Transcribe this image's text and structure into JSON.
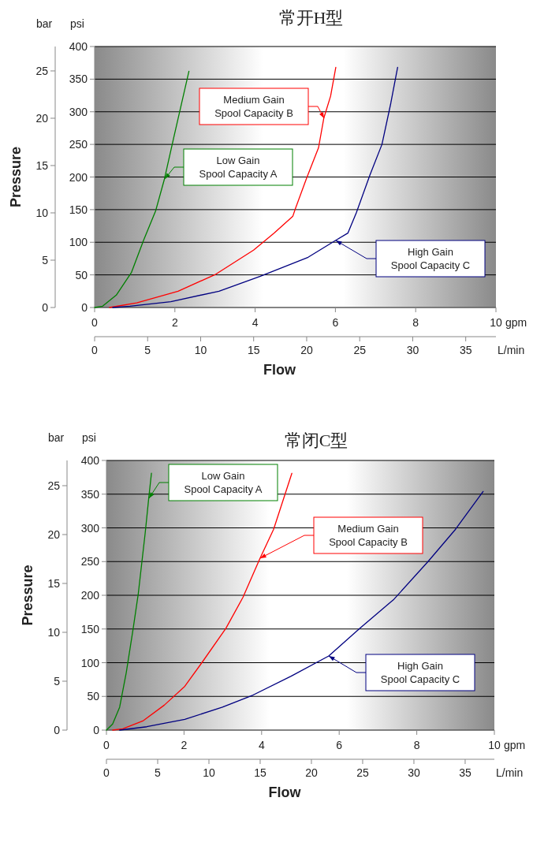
{
  "chart_data": [
    {
      "type": "line",
      "title": "常开H型",
      "xlabel": "Flow",
      "ylabel": "Pressure",
      "y2label": "psi",
      "x2label": "L/min",
      "xlim": [
        0,
        10
      ],
      "xticks": [
        0,
        2,
        4,
        6,
        8,
        10
      ],
      "y2lim": [
        0,
        400
      ],
      "y2ticks": [
        0,
        50,
        100,
        150,
        200,
        250,
        300,
        350,
        400
      ],
      "ylim": [
        0,
        27.58
      ],
      "yticks": [
        0,
        5,
        10,
        15,
        20,
        25
      ],
      "x2lim": [
        0,
        37.85
      ],
      "x2ticks": [
        0,
        5,
        10,
        15,
        20,
        25,
        30,
        35
      ],
      "grid": "y",
      "marker": "none",
      "line_style": "solid",
      "series": [
        {
          "color": "#008000",
          "axis": "y2",
          "x": [
            0,
            0.2,
            0.54,
            0.92,
            1.22,
            1.52,
            1.74,
            1.97,
            2.35
          ],
          "values": [
            0,
            2,
            19,
            54,
            103,
            148,
            197,
            260,
            362
          ]
        },
        {
          "color": "#ff0000",
          "axis": "y2",
          "x": [
            0.37,
            1.05,
            2.08,
            3.02,
            3.96,
            4.47,
            4.94,
            5.0,
            5.28,
            5.58,
            5.71,
            5.88,
            6.01
          ],
          "values": [
            0,
            7,
            25,
            51,
            88,
            114,
            140,
            151,
            198,
            245,
            290,
            324,
            368
          ]
        },
        {
          "color": "#000080",
          "axis": "y2",
          "x": [
            0.45,
            0.88,
            1.9,
            3.1,
            4.13,
            5.32,
            6.01,
            6.31,
            6.52,
            6.86,
            7.16,
            7.38,
            7.55
          ],
          "values": [
            0,
            2,
            9,
            25,
            48,
            77,
            103,
            114,
            145,
            203,
            250,
            313,
            368
          ]
        }
      ],
      "annotations": [
        "bar",
        "gpm",
        "Low Gain\nSpool Capacity A",
        "Medium Gain\nSpool Capacity B",
        "High Gain\nSpool Capacity C"
      ]
    },
    {
      "type": "line",
      "title": "常闭C型",
      "xlabel": "Flow",
      "ylabel": "Pressure",
      "y2label": "psi",
      "x2label": "L/min",
      "xlim": [
        0,
        10
      ],
      "xticks": [
        0,
        2,
        4,
        6,
        8,
        10
      ],
      "y2lim": [
        0,
        400
      ],
      "y2ticks": [
        0,
        50,
        100,
        150,
        200,
        250,
        300,
        350,
        400
      ],
      "ylim": [
        0,
        27.58
      ],
      "yticks": [
        0,
        5,
        10,
        15,
        20,
        25
      ],
      "x2lim": [
        0,
        37.85
      ],
      "x2ticks": [
        0,
        5,
        10,
        15,
        20,
        25,
        30,
        35
      ],
      "grid": "y",
      "marker": "none",
      "line_style": "solid",
      "series": [
        {
          "color": "#008000",
          "axis": "y2",
          "x": [
            0,
            0.16,
            0.34,
            0.51,
            0.69,
            0.82,
            1.0,
            1.09,
            1.16
          ],
          "values": [
            0,
            9,
            34,
            85,
            151,
            202,
            293,
            344,
            381
          ]
        },
        {
          "color": "#ff0000",
          "axis": "y2",
          "x": [
            0.16,
            0.42,
            0.95,
            1.49,
            2.02,
            2.46,
            3.08,
            3.52,
            3.96,
            4.31,
            4.78
          ],
          "values": [
            0,
            2,
            14,
            37,
            65,
            100,
            151,
            197,
            255,
            298,
            381
          ]
        },
        {
          "color": "#000080",
          "axis": "y2",
          "x": [
            0.34,
            1.04,
            2.02,
            2.99,
            3.78,
            4.76,
            5.73,
            6.53,
            7.41,
            8.29,
            9.0,
            9.71
          ],
          "values": [
            0,
            5,
            16,
            34,
            52,
            80,
            110,
            151,
            194,
            250,
            298,
            354
          ]
        }
      ],
      "annotations": [
        "bar",
        "gpm",
        "Low Gain\nSpool Capacity A",
        "Medium Gain\nSpool Capacity B",
        "High Gain\nSpool Capacity C"
      ]
    }
  ]
}
